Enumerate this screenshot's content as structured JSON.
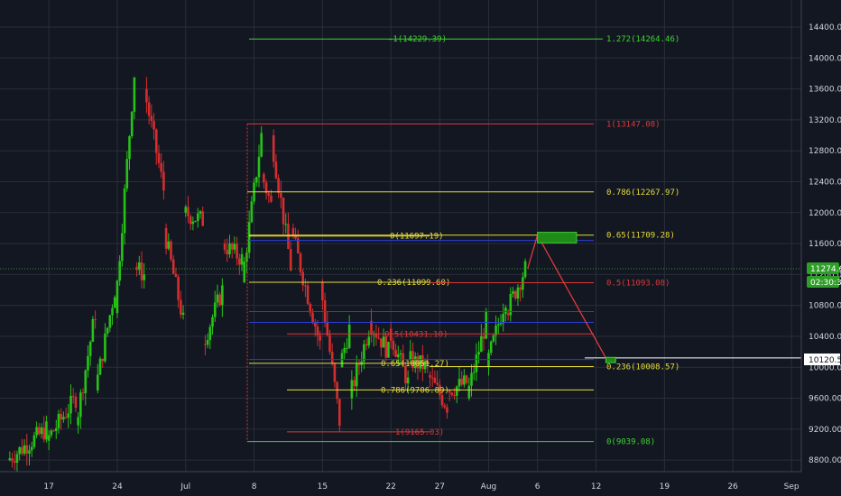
{
  "colors": {
    "background": "#131722",
    "grid": "#2a2e39",
    "up_candle": "#26c316",
    "down_candle": "#d42e2e",
    "fib_green": "#3ed430",
    "fib_red": "#d93a3a",
    "fib_yellow": "#e6dc3a",
    "fib_blue": "#2b3fd4",
    "projection_line": "#e03a3a",
    "axis_text": "#d1d4dc"
  },
  "price_axis": {
    "ticks": [
      "14400.00",
      "14000.00",
      "13600.00",
      "13200.00",
      "12800.00",
      "12400.00",
      "12000.00",
      "11600.00",
      "11200.00",
      "10800.00",
      "10400.00",
      "10000.00",
      "9600.00",
      "9200.00",
      "8800.00"
    ],
    "current_price_label": "11274.66",
    "countdown_label": "02:30:31",
    "target_price_label": "10120.52"
  },
  "time_axis": {
    "ticks": [
      "17",
      "24",
      "Jul",
      "8",
      "15",
      "22",
      "27",
      "Aug",
      "6",
      "12",
      "19",
      "26",
      "Sep"
    ]
  },
  "fib_labels": {
    "ext_minus1": "-1(14229.39)",
    "ext_1272": "1.272(14264.46)",
    "r1_top": "1(13147.08)",
    "r1_786": "0.786(12267.97)",
    "r1_65": "0.65(11709.28)",
    "r1_0": "0(11697.19)",
    "r1_236": "0.236(11099.60)",
    "r1_5": "0.5(11093.08)",
    "r1_5b": "0.5(10431.10)",
    "r1_65b": "0.65(10051.27)",
    "r1_236b": "0.236(10008.57)",
    "r1_786b": "0.786(9706.89)",
    "r1_bottom": "1(9165.03)",
    "r1_0b": "0(9039.08)"
  },
  "chart_data": {
    "type": "candlestick",
    "title": "",
    "xlabel": "",
    "ylabel": "",
    "ylim": [
      8650,
      14750
    ],
    "x_range": [
      "Jun 12",
      "Sep 2"
    ],
    "grid": true,
    "current_price": 11274.66,
    "projection": {
      "target_price": 10120.52,
      "path": [
        {
          "x": "Aug 5",
          "y": 11274.66
        },
        {
          "x": "Aug 6",
          "y": 11709.28
        },
        {
          "x": "Aug 13",
          "y": 10120.52
        }
      ],
      "zones": [
        {
          "x0": "Aug 6",
          "x1": "Aug 10",
          "y0": 11609,
          "y1": 11745
        },
        {
          "x0": "Aug 13",
          "x1": "Aug 14",
          "y0": 10060,
          "y1": 10128
        }
      ]
    },
    "fib_levels": [
      {
        "ratio": "-1",
        "price": 14229.39,
        "color": "green"
      },
      {
        "ratio": "1.272",
        "price": 14264.46,
        "color": "green"
      },
      {
        "ratio": "1",
        "price": 13147.08,
        "color": "red"
      },
      {
        "ratio": "0.786",
        "price": 12267.97,
        "color": "yellow"
      },
      {
        "ratio": "0.65",
        "price": 11709.28,
        "color": "yellow"
      },
      {
        "ratio": "0",
        "price": 11697.19,
        "color": "yellow"
      },
      {
        "ratio": "0.236",
        "price": 11099.6,
        "color": "yellow"
      },
      {
        "ratio": "0.5",
        "price": 11093.08,
        "color": "red"
      },
      {
        "ratio": "0.5",
        "price": 10431.1,
        "color": "red"
      },
      {
        "ratio": "0.65",
        "price": 10051.27,
        "color": "yellow"
      },
      {
        "ratio": "0.236",
        "price": 10008.57,
        "color": "yellow"
      },
      {
        "ratio": "0.786",
        "price": 9706.89,
        "color": "yellow"
      },
      {
        "ratio": "1",
        "price": 9165.03,
        "color": "red"
      },
      {
        "ratio": "0",
        "price": 9039.08,
        "color": "green"
      }
    ],
    "blue_levels": [
      11640,
      10720,
      10580,
      10100
    ],
    "candles_approx": [
      {
        "date": "Jun 13",
        "open": 8800,
        "close": 9100
      },
      {
        "date": "Jun 17",
        "open": 9050,
        "close": 9200
      },
      {
        "date": "Jun 20",
        "open": 9250,
        "close": 9600
      },
      {
        "date": "Jun 22",
        "open": 9700,
        "close": 10700
      },
      {
        "date": "Jun 24",
        "open": 10700,
        "close": 11000
      },
      {
        "date": "Jun 26",
        "open": 11300,
        "close": 13800
      },
      {
        "date": "Jun 27",
        "open": 13600,
        "close": 11200
      },
      {
        "date": "Jun 29",
        "open": 11800,
        "close": 12300
      },
      {
        "date": "Jul 1",
        "open": 12000,
        "close": 10600
      },
      {
        "date": "Jul 3",
        "open": 10300,
        "close": 11900
      },
      {
        "date": "Jul 5",
        "open": 11600,
        "close": 11000
      },
      {
        "date": "Jul 7",
        "open": 11100,
        "close": 11400
      },
      {
        "date": "Jul 9",
        "open": 12500,
        "close": 13000
      },
      {
        "date": "Jul 10",
        "open": 13000,
        "close": 12100
      },
      {
        "date": "Jul 12",
        "open": 11800,
        "close": 11300
      },
      {
        "date": "Jul 15",
        "open": 11100,
        "close": 10300
      },
      {
        "date": "Jul 17",
        "open": 10000,
        "close": 9300
      },
      {
        "date": "Jul 18",
        "open": 9600,
        "close": 10500
      },
      {
        "date": "Jul 20",
        "open": 10600,
        "close": 10500
      },
      {
        "date": "Jul 22",
        "open": 10500,
        "close": 10200
      },
      {
        "date": "Jul 24",
        "open": 10100,
        "close": 9800
      },
      {
        "date": "Jul 26",
        "open": 9900,
        "close": 10000
      },
      {
        "date": "Jul 28",
        "open": 9700,
        "close": 9500
      },
      {
        "date": "Jul 30",
        "open": 9600,
        "close": 9800
      },
      {
        "date": "Aug 1",
        "open": 10000,
        "close": 10600
      },
      {
        "date": "Aug 3",
        "open": 10700,
        "close": 10900
      },
      {
        "date": "Aug 5",
        "open": 10900,
        "close": 11274.66
      }
    ]
  }
}
